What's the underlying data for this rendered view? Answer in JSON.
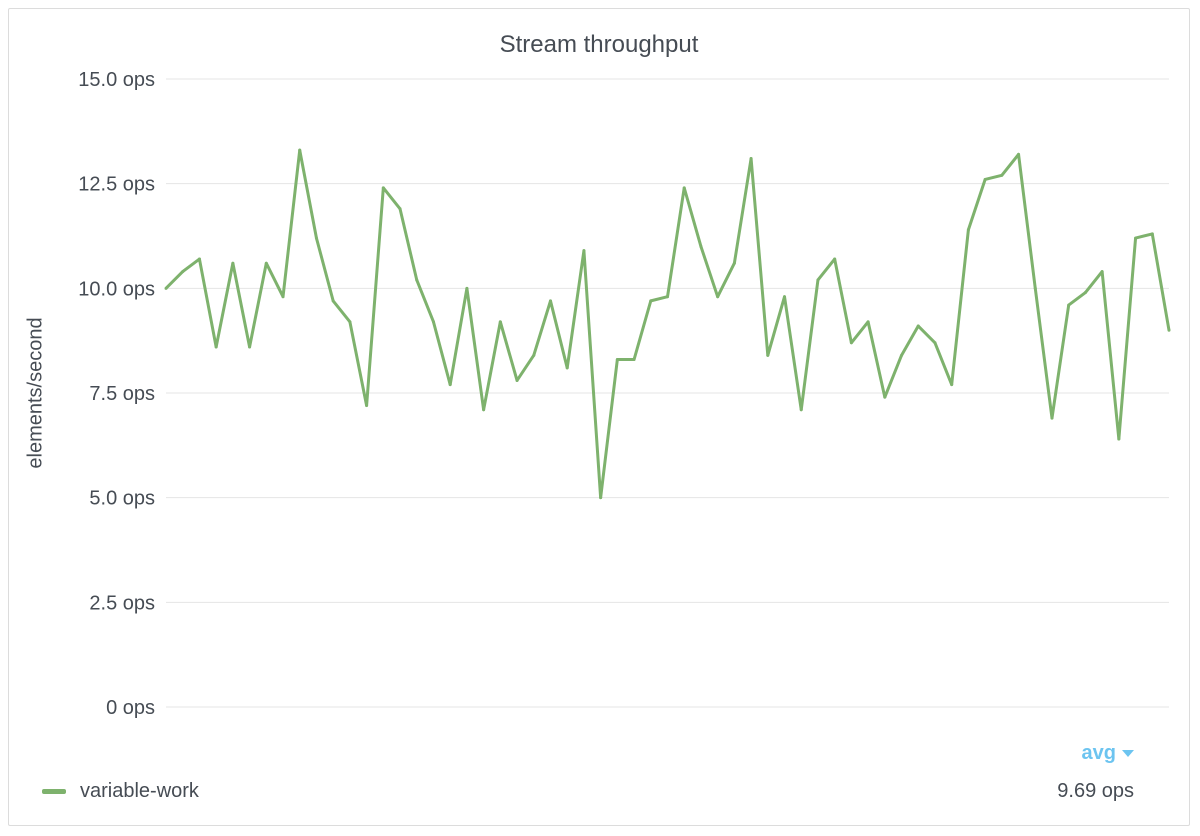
{
  "panel": {
    "title": "Stream throughput"
  },
  "chart_data": {
    "type": "line",
    "title": "Stream throughput",
    "ylabel": "elements/second",
    "xlabel": "",
    "ylim": [
      0,
      15
    ],
    "y_ticks": [
      0,
      2.5,
      5,
      7.5,
      10,
      12.5,
      15
    ],
    "y_tick_labels": [
      "0 ops",
      "2.5 ops",
      "5.0 ops",
      "7.5 ops",
      "10.0 ops",
      "12.5 ops",
      "15.0 ops"
    ],
    "grid": true,
    "legend_position": "bottom",
    "series": [
      {
        "name": "variable-work",
        "color": "#7eb26d",
        "values": [
          10.0,
          10.4,
          10.7,
          8.6,
          10.6,
          8.6,
          10.6,
          9.8,
          13.3,
          11.2,
          9.7,
          9.2,
          7.2,
          12.4,
          11.9,
          10.2,
          9.2,
          7.7,
          10.0,
          7.1,
          9.2,
          7.8,
          8.4,
          9.7,
          8.1,
          10.9,
          5.0,
          8.3,
          8.3,
          9.7,
          9.8,
          12.4,
          11.0,
          9.8,
          10.6,
          13.1,
          8.4,
          9.8,
          7.1,
          10.2,
          10.7,
          8.7,
          9.2,
          7.4,
          8.4,
          9.1,
          8.7,
          7.7,
          11.4,
          12.6,
          12.7,
          13.2,
          10.0,
          6.9,
          9.6,
          9.9,
          10.4,
          6.4,
          11.2,
          11.3,
          9.0
        ]
      }
    ]
  },
  "legend": {
    "stat_label": "avg",
    "items": [
      {
        "name": "variable-work",
        "value": "9.69 ops",
        "color": "#7eb26d"
      }
    ]
  }
}
